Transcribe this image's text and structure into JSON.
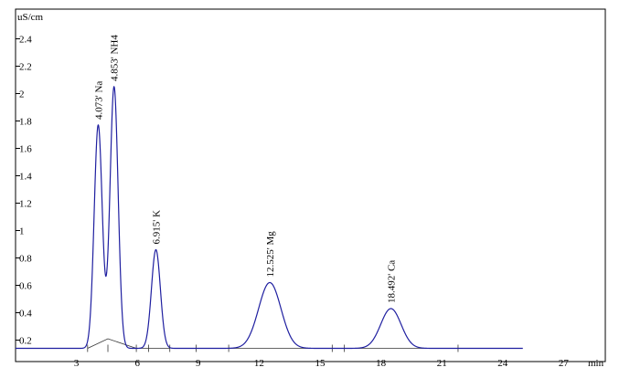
{
  "chart_data": {
    "type": "line",
    "ylabel": "uS/cm",
    "xlabel": "min",
    "xlim": [
      0,
      28
    ],
    "ylim": [
      0,
      2.5
    ],
    "x_ticks": [
      3,
      6,
      9,
      12,
      15,
      18,
      21,
      24,
      27
    ],
    "y_ticks": [
      0.2,
      0.4,
      0.6,
      0.8,
      1,
      1.2,
      1.4,
      1.6,
      1.8,
      2,
      2.2,
      2.4
    ],
    "y_tick_labels": [
      "0.2",
      "0.4",
      "0.6",
      "0.8",
      "1",
      "1.2",
      "1.4",
      "1.6",
      "1.8",
      "2",
      "2.2",
      "2.4"
    ],
    "series_color": "#1f1fa0",
    "baseline": 0.14,
    "peaks": [
      {
        "label": "4.073'  Na",
        "rt": 4.073,
        "height": 1.77
      },
      {
        "label": "4.853'  NH4",
        "rt": 4.853,
        "height": 2.05
      },
      {
        "label": "6.915'  K",
        "rt": 6.915,
        "height": 0.86
      },
      {
        "label": "12.525'  Mg",
        "rt": 12.525,
        "height": 0.62
      },
      {
        "label": "18.492'  Ca",
        "rt": 18.492,
        "height": 0.43
      }
    ]
  }
}
